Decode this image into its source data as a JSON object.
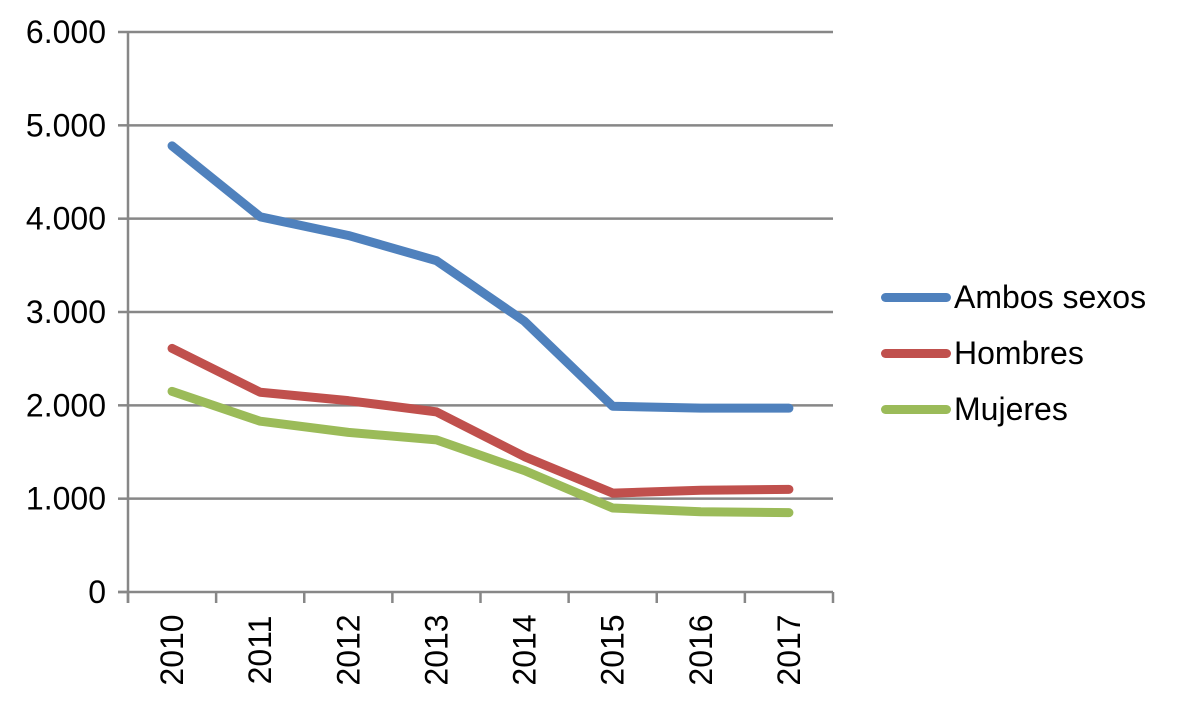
{
  "chart_data": {
    "type": "line",
    "categories": [
      "2010",
      "2011",
      "2012",
      "2013",
      "2014",
      "2015",
      "2016",
      "2017"
    ],
    "series": [
      {
        "name": "Ambos sexos",
        "color": "#4F81BD",
        "values": [
          4780,
          4020,
          3820,
          3550,
          2900,
          1990,
          1970,
          1970
        ]
      },
      {
        "name": "Hombres",
        "color": "#C0504D",
        "values": [
          2610,
          2140,
          2050,
          1930,
          1450,
          1060,
          1090,
          1100
        ]
      },
      {
        "name": "Mujeres",
        "color": "#9BBB59",
        "values": [
          2150,
          1830,
          1710,
          1630,
          1300,
          900,
          860,
          850
        ]
      }
    ],
    "ylim": [
      0,
      6000
    ],
    "ytick_step": 1000,
    "ytick_labels": [
      "0",
      "1.000",
      "2.000",
      "3.000",
      "4.000",
      "5.000",
      "6.000"
    ],
    "grid": true,
    "legend_position": "right",
    "axis_color": "#878787",
    "grid_color": "#878787",
    "text_color": "#000000"
  }
}
